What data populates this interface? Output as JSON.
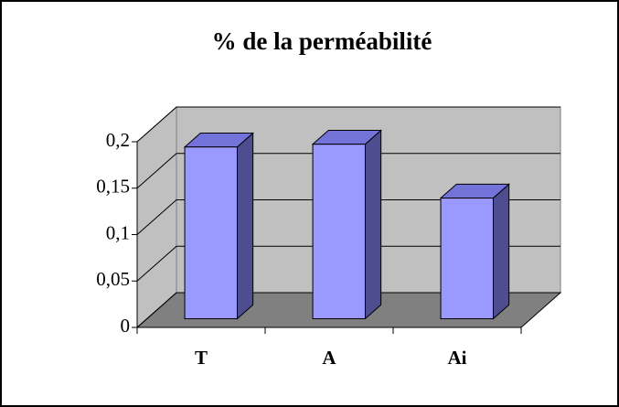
{
  "chart_data": {
    "type": "bar3d",
    "title": "% de la perméabilité",
    "categories": [
      "T",
      "A",
      "Ai"
    ],
    "values": [
      0.185,
      0.188,
      0.13
    ],
    "color": "#9999ff",
    "ylim": [
      0,
      0.2
    ],
    "yticks": [
      0,
      {
        "value": 0.05,
        "label": "0,05"
      },
      {
        "value": 0.1,
        "label": "0,1"
      },
      {
        "value": 0.15,
        "label": "0,15"
      },
      {
        "value": 0.2,
        "label": "0,2"
      }
    ],
    "grid": true
  }
}
